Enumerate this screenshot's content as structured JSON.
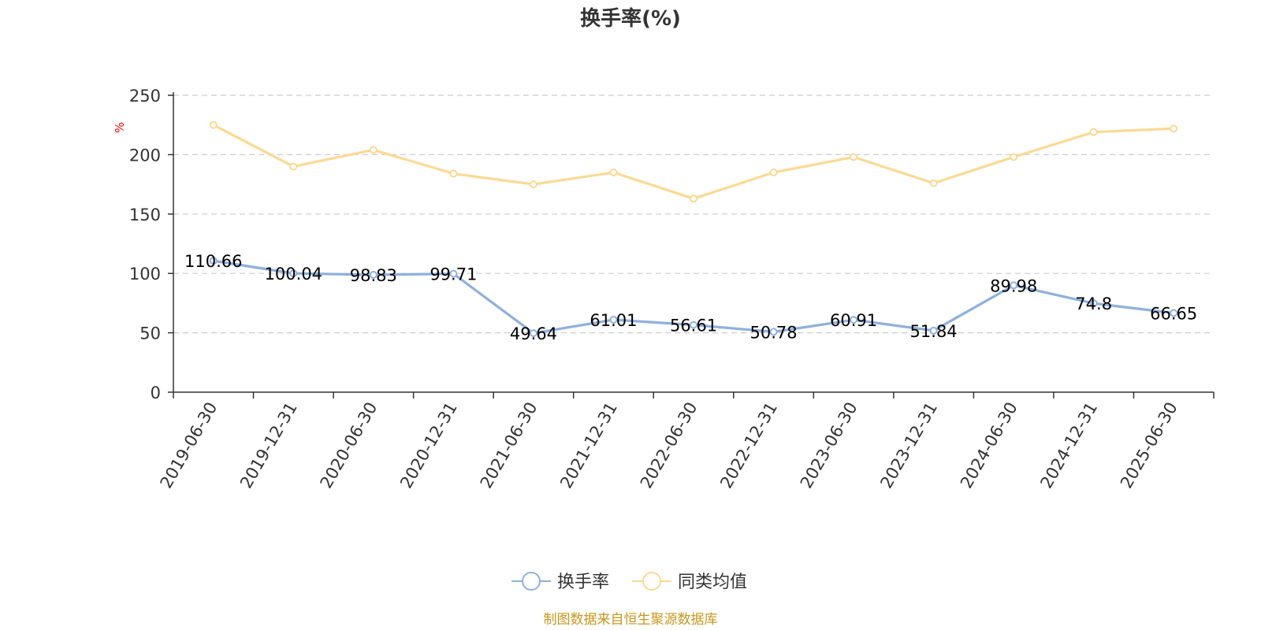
{
  "chart_data": {
    "type": "line",
    "title": "换手率(%)",
    "ylabel": "%",
    "ylim": [
      0,
      250
    ],
    "yticks": [
      0,
      50,
      100,
      150,
      200,
      250
    ],
    "grid": true,
    "legend_position": "bottom-center",
    "categories": [
      "2019-06-30",
      "2019-12-31",
      "2020-06-30",
      "2020-12-31",
      "2021-06-30",
      "2021-12-31",
      "2022-06-30",
      "2022-12-31",
      "2023-06-30",
      "2023-12-31",
      "2024-06-30",
      "2024-12-31",
      "2025-06-30"
    ],
    "series": [
      {
        "name": "换手率",
        "color": "#8fb0dc",
        "values": [
          110.66,
          100.04,
          98.83,
          99.71,
          49.64,
          61.01,
          56.61,
          50.78,
          60.91,
          51.84,
          89.98,
          74.8,
          66.65
        ],
        "labels": [
          "110.66",
          "100.04",
          "98.83",
          "99.71",
          "49.64",
          "61.01",
          "56.61",
          "50.78",
          "60.91",
          "51.84",
          "89.98",
          "74.8",
          "66.65"
        ]
      },
      {
        "name": "同类均值",
        "color": "#fbd994",
        "values": [
          225,
          190,
          204,
          184,
          175,
          185,
          163,
          185,
          198,
          176,
          198,
          219,
          222
        ]
      }
    ],
    "source": "制图数据来自恒生聚源数据库"
  }
}
